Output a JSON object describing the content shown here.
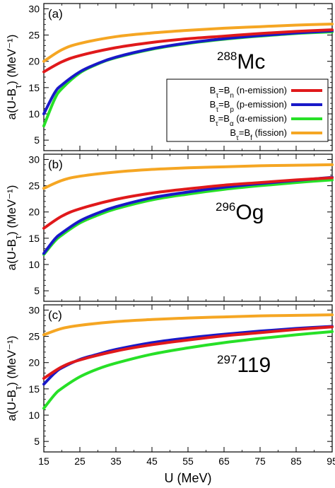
{
  "chart_data": {
    "type": "line",
    "xlabel": "U (MeV)",
    "ylabel": "a(U-B_τ) (MeV⁻¹)",
    "xlim": [
      15,
      95
    ],
    "ylim": [
      3,
      31
    ],
    "x_ticks": [
      15,
      25,
      35,
      45,
      55,
      65,
      75,
      85,
      95
    ],
    "y_ticks": [
      5,
      10,
      15,
      20,
      25,
      30
    ],
    "legend": {
      "placement": "right, inside panel (a)",
      "entries": [
        {
          "text": "B_τ=B_n (n-emission)",
          "color": "#e0191b"
        },
        {
          "text": "B_τ=B_p (p-emission)",
          "color": "#1919c8"
        },
        {
          "text": "B_τ=B_α (α-emission)",
          "color": "#27e027"
        },
        {
          "text": "B_τ=B_f (fission)",
          "color": "#f5a623"
        }
      ]
    },
    "panels": [
      {
        "label": "(a)",
        "nucleus": {
          "mass": "288",
          "symbol": "Mc"
        },
        "series": [
          {
            "key": "fission",
            "color": "#f5a623",
            "x": [
              15,
              20,
              25,
              35,
              45,
              55,
              65,
              75,
              85,
              95
            ],
            "values": [
              20.0,
              22.2,
              23.4,
              24.7,
              25.4,
              25.9,
              26.3,
              26.6,
              26.9,
              27.1
            ]
          },
          {
            "key": "n",
            "color": "#e0191b",
            "x": [
              15,
              20,
              25,
              35,
              45,
              55,
              65,
              75,
              85,
              95
            ],
            "values": [
              18.0,
              19.9,
              21.1,
              22.6,
              23.6,
              24.3,
              24.8,
              25.3,
              25.7,
              26.0
            ]
          },
          {
            "key": "p",
            "color": "#1919c8",
            "x": [
              15,
              18,
              20,
              25,
              30,
              35,
              45,
              55,
              65,
              75,
              85,
              95
            ],
            "values": [
              10.0,
              14.0,
              15.5,
              18.0,
              19.6,
              20.8,
              22.4,
              23.5,
              24.3,
              24.9,
              25.4,
              25.8
            ]
          },
          {
            "key": "alpha",
            "color": "#27e027",
            "x": [
              15,
              18,
              20,
              25,
              30,
              35,
              45,
              55,
              65,
              75,
              85,
              95
            ],
            "values": [
              7.7,
              12.8,
              14.8,
              17.8,
              19.5,
              20.7,
              22.3,
              23.4,
              24.2,
              24.8,
              25.3,
              25.6
            ]
          }
        ]
      },
      {
        "label": "(b)",
        "nucleus": {
          "mass": "296",
          "symbol": "Og"
        },
        "series": [
          {
            "key": "fission",
            "color": "#f5a623",
            "x": [
              15,
              20,
              25,
              35,
              45,
              55,
              65,
              75,
              85,
              95
            ],
            "values": [
              24.5,
              26.0,
              26.8,
              27.6,
              28.1,
              28.4,
              28.6,
              28.8,
              28.9,
              29.0
            ]
          },
          {
            "key": "n",
            "color": "#e0191b",
            "x": [
              15,
              20,
              25,
              35,
              45,
              55,
              65,
              75,
              85,
              95
            ],
            "values": [
              16.9,
              19.2,
              20.6,
              22.4,
              23.6,
              24.4,
              25.1,
              25.6,
              26.1,
              26.5
            ]
          },
          {
            "key": "p",
            "color": "#1919c8",
            "x": [
              15,
              18,
              20,
              25,
              30,
              35,
              45,
              55,
              65,
              75,
              85,
              95
            ],
            "values": [
              12.1,
              14.8,
              16.0,
              18.3,
              19.8,
              21.0,
              22.7,
              23.8,
              24.7,
              25.4,
              26.0,
              26.6
            ]
          },
          {
            "key": "alpha",
            "color": "#27e027",
            "x": [
              15,
              18,
              20,
              25,
              30,
              35,
              45,
              55,
              65,
              75,
              85,
              95
            ],
            "values": [
              11.9,
              14.4,
              15.6,
              17.9,
              19.4,
              20.6,
              22.3,
              23.4,
              24.3,
              25.0,
              25.6,
              26.1
            ]
          }
        ]
      },
      {
        "label": "(c)",
        "nucleus": {
          "mass": "297",
          "symbol": "119"
        },
        "series": [
          {
            "key": "fission",
            "color": "#f5a623",
            "x": [
              15,
              20,
              25,
              35,
              45,
              55,
              65,
              75,
              85,
              95
            ],
            "values": [
              25.3,
              26.5,
              27.1,
              27.8,
              28.2,
              28.5,
              28.7,
              28.9,
              29.0,
              29.1
            ]
          },
          {
            "key": "n",
            "color": "#e0191b",
            "x": [
              15,
              20,
              25,
              35,
              45,
              55,
              65,
              75,
              85,
              95
            ],
            "values": [
              17.0,
              19.2,
              20.5,
              22.2,
              23.4,
              24.3,
              25.1,
              25.7,
              26.3,
              26.8
            ]
          },
          {
            "key": "p",
            "color": "#1919c8",
            "x": [
              15,
              18,
              20,
              25,
              30,
              35,
              45,
              55,
              65,
              75,
              85,
              95
            ],
            "values": [
              15.9,
              18.0,
              19.0,
              20.6,
              21.6,
              22.5,
              23.8,
              24.7,
              25.4,
              26.0,
              26.5,
              26.9
            ]
          },
          {
            "key": "alpha",
            "color": "#27e027",
            "x": [
              15,
              18,
              20,
              25,
              30,
              35,
              45,
              55,
              65,
              75,
              85,
              95
            ],
            "values": [
              11.3,
              13.9,
              15.1,
              17.3,
              18.8,
              19.9,
              21.6,
              22.8,
              23.8,
              24.6,
              25.3,
              25.9
            ]
          }
        ]
      }
    ]
  }
}
